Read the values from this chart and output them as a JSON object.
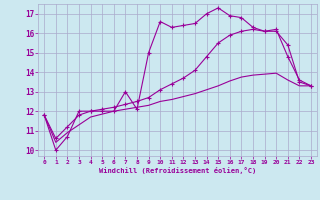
{
  "xlabel": "Windchill (Refroidissement éolien,°C)",
  "background_color": "#cce8f0",
  "grid_color": "#aaaacc",
  "line_color": "#990099",
  "xlim": [
    -0.5,
    23.5
  ],
  "ylim": [
    9.7,
    17.5
  ],
  "yticks": [
    10,
    11,
    12,
    13,
    14,
    15,
    16,
    17
  ],
  "xticks": [
    0,
    1,
    2,
    3,
    4,
    5,
    6,
    7,
    8,
    9,
    10,
    11,
    12,
    13,
    14,
    15,
    16,
    17,
    18,
    19,
    20,
    21,
    22,
    23
  ],
  "series1_x": [
    0,
    1,
    2,
    3,
    4,
    5,
    6,
    7,
    8,
    9,
    10,
    11,
    12,
    13,
    14,
    15,
    16,
    17,
    18,
    19,
    20,
    21,
    22,
    23
  ],
  "series1_y": [
    11.8,
    10.0,
    10.7,
    12.0,
    12.0,
    12.0,
    12.0,
    13.0,
    12.1,
    15.0,
    16.6,
    16.3,
    16.4,
    16.5,
    17.0,
    17.3,
    16.9,
    16.8,
    16.3,
    16.1,
    16.2,
    14.8,
    13.6,
    13.3
  ],
  "series2_x": [
    0,
    1,
    2,
    3,
    4,
    5,
    6,
    7,
    8,
    9,
    10,
    11,
    12,
    13,
    14,
    15,
    16,
    17,
    18,
    19,
    20,
    21,
    22,
    23
  ],
  "series2_y": [
    11.8,
    10.6,
    11.2,
    11.8,
    12.0,
    12.1,
    12.2,
    12.35,
    12.5,
    12.7,
    13.1,
    13.4,
    13.7,
    14.1,
    14.8,
    15.5,
    15.9,
    16.1,
    16.2,
    16.1,
    16.1,
    15.4,
    13.5,
    13.3
  ],
  "series3_x": [
    0,
    1,
    2,
    3,
    4,
    5,
    6,
    7,
    8,
    9,
    10,
    11,
    12,
    13,
    14,
    15,
    16,
    17,
    18,
    19,
    20,
    21,
    22,
    23
  ],
  "series3_y": [
    11.8,
    10.4,
    10.9,
    11.3,
    11.7,
    11.85,
    12.0,
    12.1,
    12.2,
    12.3,
    12.5,
    12.6,
    12.75,
    12.9,
    13.1,
    13.3,
    13.55,
    13.75,
    13.85,
    13.9,
    13.95,
    13.6,
    13.3,
    13.3
  ]
}
